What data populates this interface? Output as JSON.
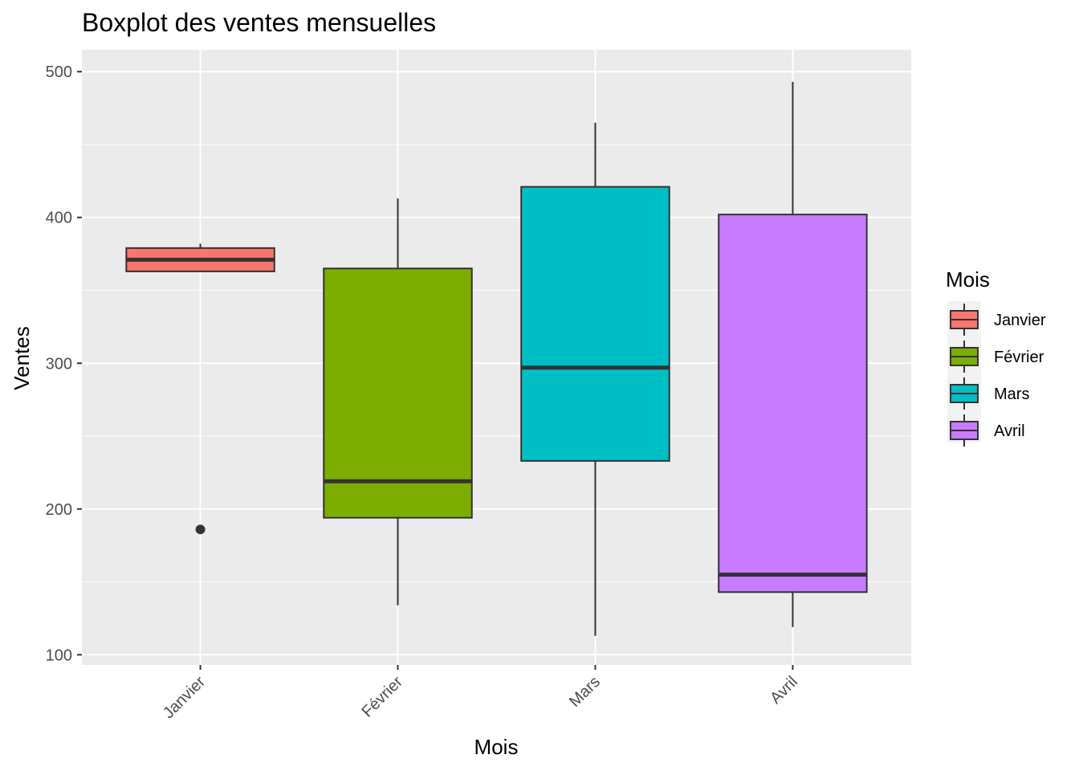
{
  "chart_data": {
    "type": "boxplot",
    "title": "Boxplot des ventes mensuelles",
    "xlabel": "Mois",
    "ylabel": "Ventes",
    "ylim": [
      93,
      515
    ],
    "yticks": [
      100,
      200,
      300,
      400,
      500
    ],
    "categories": [
      "Janvier",
      "Février",
      "Mars",
      "Avril"
    ],
    "boxes": [
      {
        "name": "Janvier",
        "whisker_low": 363,
        "q1": 363,
        "median": 371,
        "q3": 379,
        "whisker_high": 382,
        "outliers": [
          186
        ],
        "color": "#F8766D"
      },
      {
        "name": "Février",
        "whisker_low": 134,
        "q1": 194,
        "median": 219,
        "q3": 365,
        "whisker_high": 413,
        "outliers": [],
        "color": "#7CAE00"
      },
      {
        "name": "Mars",
        "whisker_low": 113,
        "q1": 233,
        "median": 297,
        "q3": 421,
        "whisker_high": 465,
        "outliers": [],
        "color": "#00BFC4"
      },
      {
        "name": "Avril",
        "whisker_low": 119,
        "q1": 143,
        "median": 155,
        "q3": 402,
        "whisker_high": 493,
        "outliers": [],
        "color": "#C77CFF"
      }
    ],
    "legend": {
      "title": "Mois",
      "position": "right",
      "items": [
        "Janvier",
        "Février",
        "Mars",
        "Avril"
      ]
    },
    "grid": true,
    "panel_background": "#EBEBEB",
    "box_outline_color": "#333333"
  }
}
